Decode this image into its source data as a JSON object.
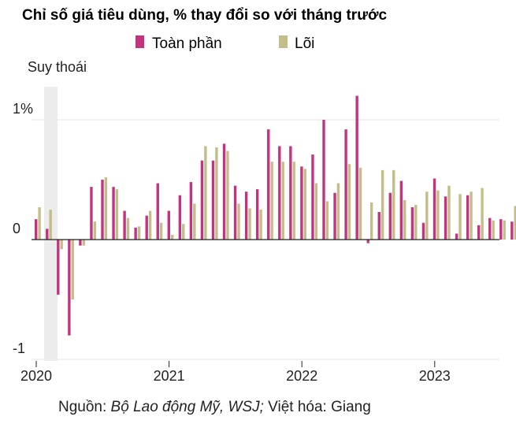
{
  "chart_data": {
    "type": "bar",
    "title": "Chỉ số giá tiêu dùng, % thay đổi so với tháng trước",
    "legend": {
      "placement": "top-center",
      "entries": [
        {
          "name": "Toàn phần",
          "color": "#c0357d"
        },
        {
          "name": "Lõi",
          "color": "#c3bd8a"
        }
      ]
    },
    "shaded_region": {
      "label": "Suy thoái",
      "from": "2020-02",
      "to": "2020-04"
    },
    "ylim": [
      -1,
      1.2
    ],
    "y_ticks": [
      {
        "value": 1,
        "label": "1%"
      },
      {
        "value": 0,
        "label": "0"
      },
      {
        "value": -1,
        "label": "-1"
      }
    ],
    "x_ticks": [
      {
        "month": "2020-01",
        "label": "2020"
      },
      {
        "month": "2021-01",
        "label": "2021"
      },
      {
        "month": "2022-01",
        "label": "2022"
      },
      {
        "month": "2023-01",
        "label": "2023"
      }
    ],
    "grid": true,
    "categories": [
      "2020-01",
      "2020-02",
      "2020-03",
      "2020-04",
      "2020-05",
      "2020-06",
      "2020-07",
      "2020-08",
      "2020-09",
      "2020-10",
      "2020-11",
      "2020-12",
      "2021-01",
      "2021-02",
      "2021-03",
      "2021-04",
      "2021-05",
      "2021-06",
      "2021-07",
      "2021-08",
      "2021-09",
      "2021-10",
      "2021-11",
      "2021-12",
      "2022-01",
      "2022-02",
      "2022-03",
      "2022-04",
      "2022-05",
      "2022-06",
      "2022-07",
      "2022-08",
      "2022-09",
      "2022-10",
      "2022-11",
      "2022-12",
      "2023-01",
      "2023-02",
      "2023-03",
      "2023-04",
      "2023-05",
      "2023-06",
      "2023-07",
      "2023-08"
    ],
    "series": [
      {
        "name": "Toàn phần",
        "color": "#c0357d",
        "values": [
          0.17,
          0.09,
          -0.46,
          -0.8,
          -0.05,
          0.44,
          0.5,
          0.44,
          0.24,
          0.1,
          0.2,
          0.47,
          0.24,
          0.37,
          0.48,
          0.66,
          0.66,
          0.8,
          0.45,
          0.4,
          0.42,
          0.92,
          0.78,
          0.78,
          0.61,
          0.71,
          1.0,
          0.39,
          0.92,
          1.2,
          -0.03,
          0.23,
          0.39,
          0.49,
          0.27,
          0.14,
          0.51,
          0.36,
          0.05,
          0.37,
          0.12,
          0.18,
          0.17,
          0.15
        ]
      },
      {
        "name": "Lõi",
        "color": "#c3bd8a",
        "values": [
          0.27,
          0.25,
          -0.08,
          -0.5,
          -0.05,
          0.15,
          0.52,
          0.42,
          0.18,
          0.11,
          0.24,
          0.14,
          0.04,
          0.13,
          0.3,
          0.78,
          0.77,
          0.74,
          0.3,
          0.26,
          0.25,
          0.65,
          0.65,
          0.65,
          0.59,
          0.47,
          0.32,
          0.47,
          0.63,
          0.6,
          0.31,
          0.58,
          0.58,
          0.33,
          0.29,
          0.4,
          0.41,
          0.45,
          0.38,
          0.4,
          0.43,
          0.16,
          0.16,
          0.28
        ]
      }
    ]
  },
  "source": {
    "prefix": "Nguồn: ",
    "italic": "Bộ Lao động Mỹ, WSJ;",
    "suffix": " Việt hóa: Giang"
  }
}
